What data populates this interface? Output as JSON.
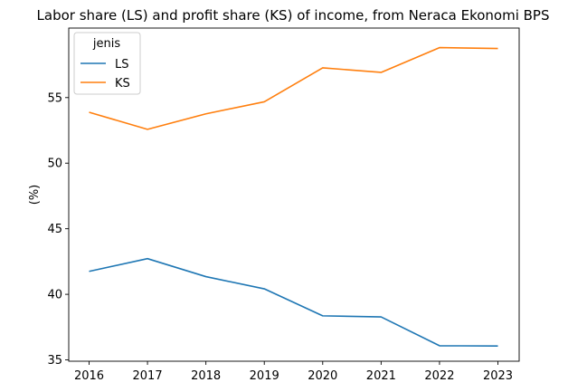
{
  "chart_data": {
    "type": "line",
    "title": "Labor share (LS) and profit share (KS) of income, from Neraca Ekonomi BPS",
    "xlabel": "",
    "ylabel": "(%)",
    "x": [
      "2016",
      "2017",
      "2018",
      "2019",
      "2020",
      "2021",
      "2022",
      "2023"
    ],
    "yticks": [
      35,
      40,
      45,
      50,
      55
    ],
    "ylim": [
      34.9,
      60.3
    ],
    "legend": {
      "title": "jenis",
      "placement": "top-left"
    },
    "grid": false,
    "series": [
      {
        "name": "LS",
        "color": "#1f77b4",
        "values": [
          41.75,
          42.72,
          41.35,
          40.42,
          38.36,
          38.28,
          36.08,
          36.06
        ]
      },
      {
        "name": "KS",
        "color": "#ff7f0e",
        "values": [
          53.88,
          52.58,
          53.76,
          54.68,
          57.27,
          56.92,
          58.81,
          58.74
        ]
      }
    ]
  }
}
